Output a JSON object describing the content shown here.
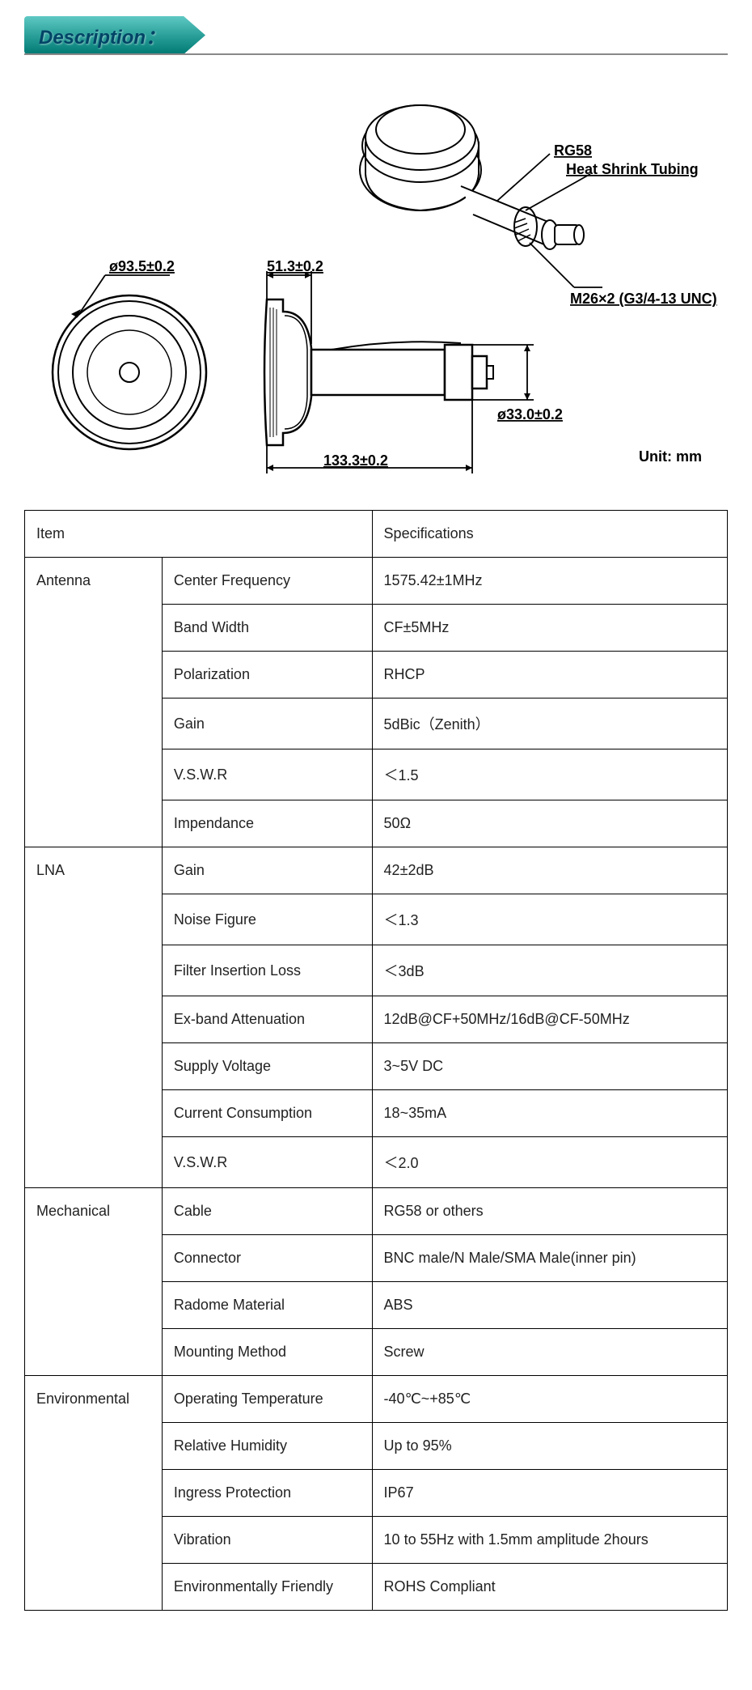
{
  "header": {
    "title": "Description："
  },
  "diagram": {
    "unit_label": "Unit: mm",
    "dim_diameter": "ø93.5±0.2",
    "dim_top_width": "51.3±0.2",
    "dim_total_length": "133.3±0.2",
    "dim_conn_diam": "ø33.0±0.2",
    "label_cable": "RG58",
    "label_tubing": "Heat Shrink Tubing",
    "label_thread": "M26×2 (G3/4-13 UNC)",
    "stroke": "#000000",
    "stroke_width": 2
  },
  "table": {
    "header": {
      "item": "Item",
      "spec": "Specifications"
    },
    "groups": [
      {
        "category": "Antenna",
        "rows": [
          {
            "param": "Center Frequency",
            "value": "1575.42±1MHz"
          },
          {
            "param": "Band Width",
            "value": "CF±5MHz"
          },
          {
            "param": "Polarization",
            "value": "RHCP"
          },
          {
            "param": "Gain",
            "value": "5dBic（Zenith）"
          },
          {
            "param": "V.S.W.R",
            "value": "＜1.5"
          },
          {
            "param": "Impendance",
            "value": "50Ω"
          }
        ]
      },
      {
        "category": "LNA",
        "rows": [
          {
            "param": "Gain",
            "value": "42±2dB"
          },
          {
            "param": "Noise Figure",
            "value": "＜1.3"
          },
          {
            "param": "Filter Insertion Loss",
            "value": "＜3dB"
          },
          {
            "param": "Ex-band Attenuation",
            "value": "12dB@CF+50MHz/16dB@CF-50MHz"
          },
          {
            "param": "Supply Voltage",
            "value": "3~5V DC"
          },
          {
            "param": "Current Consumption",
            "value": "18~35mA"
          },
          {
            "param": "V.S.W.R",
            "value": "＜2.0"
          }
        ]
      },
      {
        "category": "Mechanical",
        "rows": [
          {
            "param": "Cable",
            "value": "RG58 or others"
          },
          {
            "param": "Connector",
            "value": "BNC male/N Male/SMA Male(inner pin)"
          },
          {
            "param": "Radome Material",
            "value": "ABS"
          },
          {
            "param": "Mounting Method",
            "value": "Screw"
          }
        ]
      },
      {
        "category": "Environmental",
        "rows": [
          {
            "param": "Operating Temperature",
            "value": "-40℃~+85℃"
          },
          {
            "param": "Relative Humidity",
            "value": "Up to 95%"
          },
          {
            "param": "Ingress Protection",
            "value": "IP67"
          },
          {
            "param": "Vibration",
            "value": "10 to 55Hz with 1.5mm amplitude 2hours"
          },
          {
            "param": "Environmentally Friendly",
            "value": "ROHS Compliant"
          }
        ]
      }
    ]
  }
}
